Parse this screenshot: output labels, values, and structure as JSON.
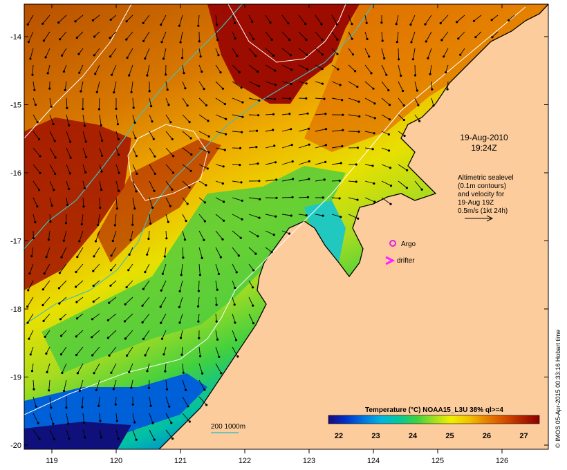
{
  "map": {
    "datetime": {
      "date": "19-Aug-2010",
      "time": "19:24Z"
    },
    "altimetry_note": [
      "Altimetric sealevel",
      "(0.1m contours)",
      "and velocity for",
      "19-Aug 19Z",
      "0.5m/s (1kt 24h)"
    ],
    "legend": {
      "argo_label": "Argo",
      "drifter_label": "drifter",
      "argo_color": "#e020e0",
      "drifter_color": "#ff20ff",
      "bathy_label": "200  1000m",
      "bathy_color": "#40c0c0"
    },
    "colorbar": {
      "title": "Temperature (°C) NOAA15_L3U 38% ql>=4",
      "ticks": [
        "22",
        "23",
        "24",
        "25",
        "26",
        "27"
      ],
      "colors": [
        "#1a0a78",
        "#0030c8",
        "#0078e0",
        "#00b4e0",
        "#00c8a0",
        "#40d040",
        "#a0e020",
        "#f0f000",
        "#f0c000",
        "#e88000",
        "#d85000",
        "#b02000",
        "#8c0000"
      ]
    },
    "axes": {
      "lon_labels": [
        "119",
        "120",
        "121",
        "122",
        "123",
        "124",
        "125",
        "126"
      ],
      "lat_labels": [
        "-14",
        "-15",
        "-16",
        "-17",
        "-18",
        "-19",
        "-20"
      ]
    },
    "credit": "© IMOS 05-Apr-2015 00:33:16 Hobart time",
    "colors": {
      "land": "#fccc9c",
      "sea_warm": "#c86400",
      "sea_hot": "#9c0c00",
      "sea_mid": "#f0a000",
      "sea_cool": "#d0e020"
    }
  }
}
